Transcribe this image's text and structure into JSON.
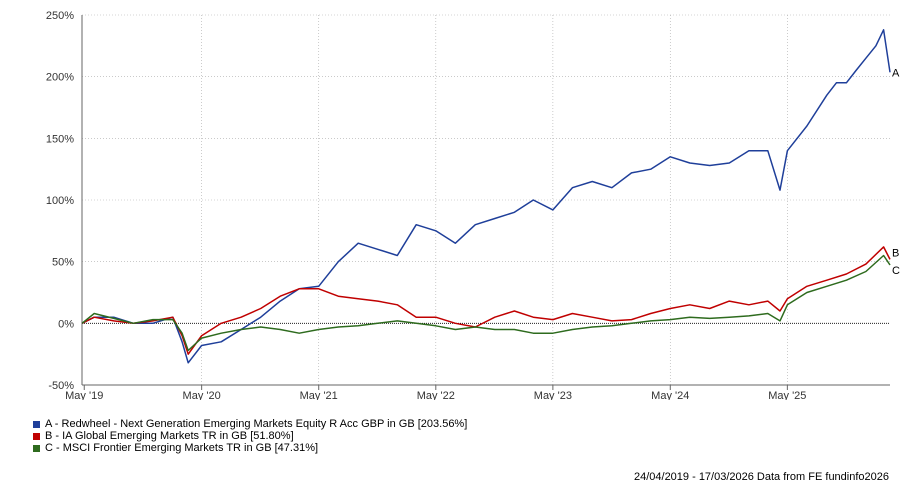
{
  "chart_data": {
    "type": "line",
    "title": "",
    "xlabel": "",
    "ylabel": "",
    "x_ticks": [
      "May '19",
      "May '20",
      "May '21",
      "May '22",
      "May '23",
      "May '24",
      "May '25"
    ],
    "y_ticks": [
      "250%",
      "200%",
      "150%",
      "100%",
      "50%",
      "0%",
      "-50%"
    ],
    "ylim": [
      -50,
      250
    ],
    "xlim": [
      "2019-04-24",
      "2026-03-17"
    ],
    "grid": true,
    "series": [
      {
        "name": "A - Redwheel - Next Generation Emerging Markets Equity R Acc GBP in GB [203.56%]",
        "end_label": "A",
        "color": "#1f3f9a",
        "x": [
          "2019-04-24",
          "2019-06-01",
          "2019-08-01",
          "2019-10-01",
          "2019-12-01",
          "2020-02-01",
          "2020-03-01",
          "2020-03-20",
          "2020-05-01",
          "2020-07-01",
          "2020-09-01",
          "2020-11-01",
          "2021-01-01",
          "2021-03-01",
          "2021-05-01",
          "2021-07-01",
          "2021-09-01",
          "2021-11-01",
          "2022-01-01",
          "2022-03-01",
          "2022-05-01",
          "2022-07-01",
          "2022-09-01",
          "2022-11-01",
          "2023-01-01",
          "2023-03-01",
          "2023-05-01",
          "2023-07-01",
          "2023-09-01",
          "2023-11-01",
          "2024-01-01",
          "2024-03-01",
          "2024-05-01",
          "2024-07-01",
          "2024-09-01",
          "2024-11-01",
          "2025-01-01",
          "2025-03-01",
          "2025-04-08",
          "2025-05-01",
          "2025-07-01",
          "2025-09-01",
          "2025-10-01",
          "2025-11-01",
          "2025-12-01",
          "2026-01-01",
          "2026-02-01",
          "2026-02-25",
          "2026-03-17"
        ],
        "values": [
          0,
          5,
          5,
          0,
          0,
          5,
          -15,
          -32,
          -18,
          -15,
          -5,
          5,
          18,
          28,
          30,
          50,
          65,
          60,
          55,
          80,
          75,
          65,
          80,
          85,
          90,
          100,
          92,
          110,
          115,
          110,
          122,
          125,
          135,
          130,
          128,
          130,
          140,
          140,
          108,
          140,
          160,
          185,
          195,
          195,
          205,
          215,
          225,
          238,
          203.56
        ]
      },
      {
        "name": "B - IA Global Emerging Markets TR in GB [51.80%]",
        "end_label": "B",
        "color": "#c00000",
        "x": [
          "2019-04-24",
          "2019-06-01",
          "2019-08-01",
          "2019-10-01",
          "2019-12-01",
          "2020-02-01",
          "2020-03-01",
          "2020-03-20",
          "2020-05-01",
          "2020-07-01",
          "2020-09-01",
          "2020-11-01",
          "2021-01-01",
          "2021-03-01",
          "2021-05-01",
          "2021-07-01",
          "2021-09-01",
          "2021-11-01",
          "2022-01-01",
          "2022-03-01",
          "2022-05-01",
          "2022-07-01",
          "2022-09-01",
          "2022-11-01",
          "2023-01-01",
          "2023-03-01",
          "2023-05-01",
          "2023-07-01",
          "2023-09-01",
          "2023-11-01",
          "2024-01-01",
          "2024-03-01",
          "2024-05-01",
          "2024-07-01",
          "2024-09-01",
          "2024-11-01",
          "2025-01-01",
          "2025-03-01",
          "2025-04-08",
          "2025-05-01",
          "2025-07-01",
          "2025-09-01",
          "2025-11-01",
          "2026-01-01",
          "2026-02-25",
          "2026-03-17"
        ],
        "values": [
          0,
          5,
          2,
          0,
          2,
          5,
          -10,
          -25,
          -10,
          0,
          5,
          12,
          22,
          28,
          28,
          22,
          20,
          18,
          15,
          5,
          5,
          0,
          -3,
          5,
          10,
          5,
          3,
          8,
          5,
          2,
          3,
          8,
          12,
          15,
          12,
          18,
          15,
          18,
          10,
          20,
          30,
          35,
          40,
          48,
          62,
          51.8
        ]
      },
      {
        "name": "C - MSCI Frontier Emerging Markets TR in GB [47.31%]",
        "end_label": "C",
        "color": "#2e6b1e",
        "x": [
          "2019-04-24",
          "2019-06-01",
          "2019-08-01",
          "2019-10-01",
          "2019-12-01",
          "2020-02-01",
          "2020-03-01",
          "2020-03-20",
          "2020-05-01",
          "2020-07-01",
          "2020-09-01",
          "2020-11-01",
          "2021-01-01",
          "2021-03-01",
          "2021-05-01",
          "2021-07-01",
          "2021-09-01",
          "2021-11-01",
          "2022-01-01",
          "2022-03-01",
          "2022-05-01",
          "2022-07-01",
          "2022-09-01",
          "2022-11-01",
          "2023-01-01",
          "2023-03-01",
          "2023-05-01",
          "2023-07-01",
          "2023-09-01",
          "2023-11-01",
          "2024-01-01",
          "2024-03-01",
          "2024-05-01",
          "2024-07-01",
          "2024-09-01",
          "2024-11-01",
          "2025-01-01",
          "2025-03-01",
          "2025-04-08",
          "2025-05-01",
          "2025-07-01",
          "2025-09-01",
          "2025-11-01",
          "2026-01-01",
          "2026-02-25",
          "2026-03-17"
        ],
        "values": [
          0,
          8,
          4,
          0,
          3,
          3,
          -8,
          -22,
          -12,
          -8,
          -5,
          -3,
          -5,
          -8,
          -5,
          -3,
          -2,
          0,
          2,
          0,
          -2,
          -5,
          -3,
          -5,
          -5,
          -8,
          -8,
          -5,
          -3,
          -2,
          0,
          2,
          3,
          5,
          4,
          5,
          6,
          8,
          2,
          15,
          25,
          30,
          35,
          42,
          55,
          47.31
        ]
      }
    ]
  },
  "legend_items": [
    {
      "label": "A - Redwheel - Next Generation Emerging Markets Equity R Acc GBP in GB [203.56%]",
      "color": "#1f3f9a"
    },
    {
      "label": "B - IA Global Emerging Markets TR in GB [51.80%]",
      "color": "#c00000"
    },
    {
      "label": "C - MSCI Frontier Emerging Markets TR in GB [47.31%]",
      "color": "#2e6b1e"
    }
  ],
  "footer": "24/04/2019 - 17/03/2026 Data from FE fundinfo2026"
}
